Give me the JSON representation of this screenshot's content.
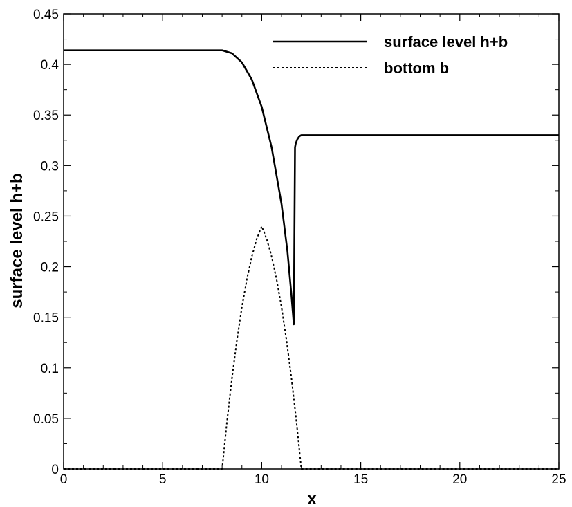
{
  "chart_data": {
    "type": "line",
    "title": "",
    "xlabel": "x",
    "ylabel": "surface level h+b",
    "xlim": [
      0,
      25
    ],
    "ylim": [
      0,
      0.45
    ],
    "x_ticks": [
      0,
      5,
      10,
      15,
      20,
      25
    ],
    "x_tick_labels": [
      "0",
      "5",
      "10",
      "15",
      "20",
      "25"
    ],
    "y_ticks": [
      0,
      0.05,
      0.1,
      0.15,
      0.2,
      0.25,
      0.3,
      0.35,
      0.4,
      0.45
    ],
    "y_tick_labels": [
      "0",
      "0.05",
      "0.1",
      "0.15",
      "0.2",
      "0.25",
      "0.3",
      "0.35",
      "0.4",
      "0.45"
    ],
    "grid": false,
    "legend_position": "top-right",
    "series": [
      {
        "name": "surface level h+b",
        "style": "solid",
        "color": "#000000",
        "points": [
          [
            0,
            0.414
          ],
          [
            8.0,
            0.414
          ],
          [
            8.5,
            0.411
          ],
          [
            9.0,
            0.402
          ],
          [
            9.5,
            0.385
          ],
          [
            10.0,
            0.358
          ],
          [
            10.5,
            0.318
          ],
          [
            11.0,
            0.262
          ],
          [
            11.3,
            0.215
          ],
          [
            11.5,
            0.172
          ],
          [
            11.62,
            0.143
          ],
          [
            11.68,
            0.318
          ],
          [
            11.72,
            0.322
          ],
          [
            11.8,
            0.326
          ],
          [
            11.9,
            0.329
          ],
          [
            12.0,
            0.33
          ],
          [
            15,
            0.33
          ],
          [
            20,
            0.33
          ],
          [
            25,
            0.33
          ]
        ]
      },
      {
        "name": "bottom b",
        "style": "dotted",
        "color": "#000000",
        "points": [
          [
            0,
            0
          ],
          [
            8.0,
            0
          ],
          [
            8.25,
            0.0475
          ],
          [
            8.5,
            0.09
          ],
          [
            8.75,
            0.1275
          ],
          [
            9.0,
            0.16
          ],
          [
            9.25,
            0.1875
          ],
          [
            9.5,
            0.21
          ],
          [
            9.75,
            0.2275
          ],
          [
            10.0,
            0.24
          ],
          [
            10.25,
            0.2275
          ],
          [
            10.5,
            0.21
          ],
          [
            10.75,
            0.1875
          ],
          [
            11.0,
            0.16
          ],
          [
            11.25,
            0.1275
          ],
          [
            11.5,
            0.09
          ],
          [
            11.75,
            0.0475
          ],
          [
            12.0,
            0
          ],
          [
            25,
            0
          ]
        ]
      }
    ]
  }
}
